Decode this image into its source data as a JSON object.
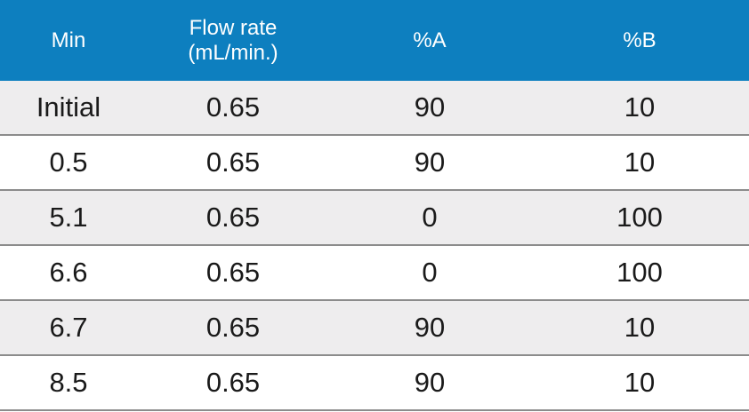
{
  "table": {
    "header": {
      "col_min": "Min",
      "col_flow_line1": "Flow rate",
      "col_flow_line2": "(mL/min.)",
      "col_a": "%A",
      "col_b": "%B"
    },
    "rows": [
      {
        "min": "Initial",
        "flow": "0.65",
        "a": "90",
        "b": "10"
      },
      {
        "min": "0.5",
        "flow": "0.65",
        "a": "90",
        "b": "10"
      },
      {
        "min": "5.1",
        "flow": "0.65",
        "a": "0",
        "b": "100"
      },
      {
        "min": "6.6",
        "flow": "0.65",
        "a": "0",
        "b": "100"
      },
      {
        "min": "6.7",
        "flow": "0.65",
        "a": "90",
        "b": "10"
      },
      {
        "min": "8.5",
        "flow": "0.65",
        "a": "90",
        "b": "10"
      }
    ]
  },
  "colors": {
    "header_bg": "#0d7fbf",
    "header_text": "#ffffff",
    "row_alt_bg": "#eeedee",
    "divider": "#8c8c8c"
  }
}
